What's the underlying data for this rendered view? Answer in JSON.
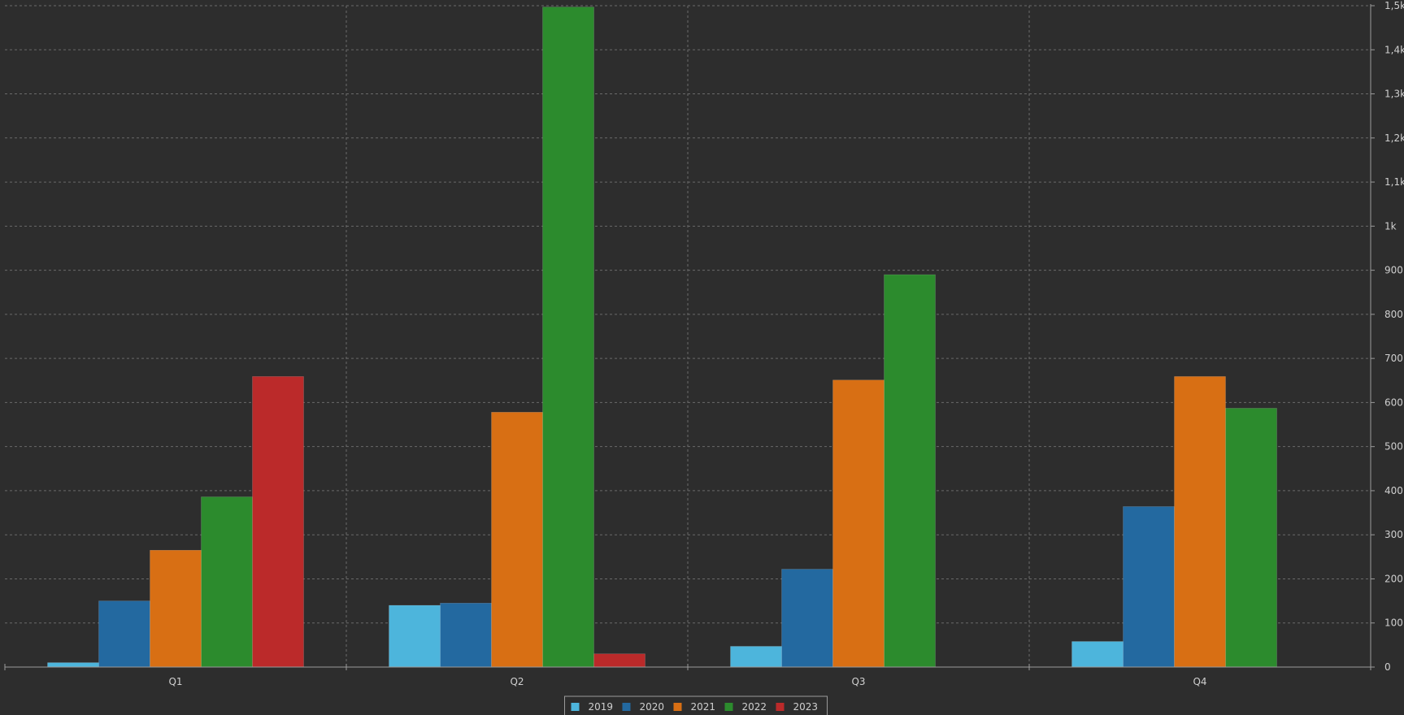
{
  "chart_data": {
    "type": "bar",
    "categories": [
      "Q1",
      "Q2",
      "Q3",
      "Q4"
    ],
    "series": [
      {
        "name": "2019",
        "color": "#4db5dc",
        "values": [
          10,
          140,
          47,
          58
        ]
      },
      {
        "name": "2020",
        "color": "#2369a0",
        "values": [
          150,
          145,
          222,
          364
        ]
      },
      {
        "name": "2021",
        "color": "#d86f14",
        "values": [
          265,
          578,
          651,
          659
        ]
      },
      {
        "name": "2022",
        "color": "#2c8b2d",
        "values": [
          386,
          1497,
          890,
          587
        ]
      },
      {
        "name": "2023",
        "color": "#bb2a2a",
        "values": [
          659,
          30,
          0,
          0
        ]
      }
    ],
    "ylim": [
      0,
      1500
    ],
    "yticks": [
      {
        "value": 0,
        "label": "0"
      },
      {
        "value": 100,
        "label": "100"
      },
      {
        "value": 200,
        "label": "200"
      },
      {
        "value": 300,
        "label": "300"
      },
      {
        "value": 400,
        "label": "400"
      },
      {
        "value": 500,
        "label": "500"
      },
      {
        "value": 600,
        "label": "600"
      },
      {
        "value": 700,
        "label": "700"
      },
      {
        "value": 800,
        "label": "800"
      },
      {
        "value": 900,
        "label": "900"
      },
      {
        "value": 1000,
        "label": "1k"
      },
      {
        "value": 1100,
        "label": "1,1k"
      },
      {
        "value": 1200,
        "label": "1,2k"
      },
      {
        "value": 1300,
        "label": "1,3k"
      },
      {
        "value": 1400,
        "label": "1,4k"
      },
      {
        "value": 1500,
        "label": "1,5k"
      }
    ],
    "y_axis_side": "right",
    "grid": true,
    "legend": "bottom-center",
    "title": "",
    "xlabel": "",
    "ylabel": ""
  }
}
